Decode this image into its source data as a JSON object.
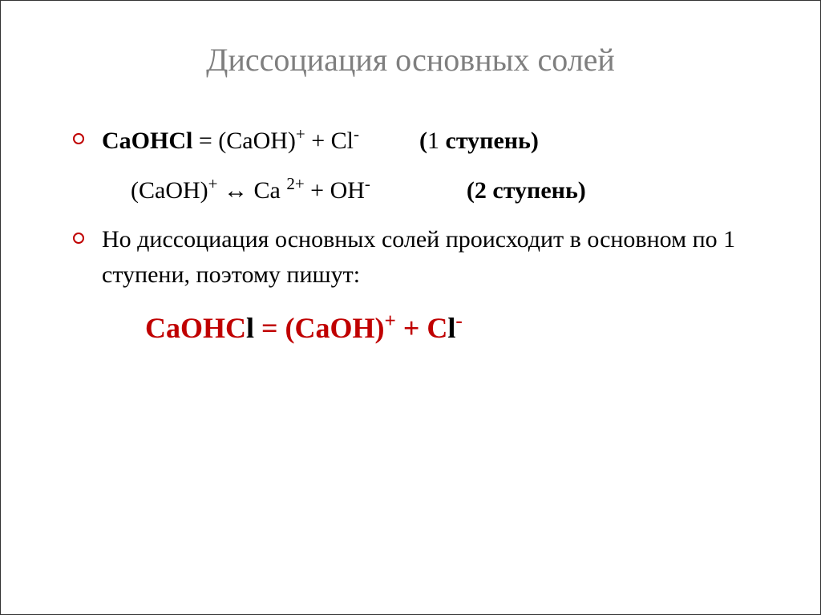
{
  "slide": {
    "title": "Диссоциация основных солей",
    "title_color": "#7f7f7f",
    "title_fontsize": 40,
    "background_color": "#ffffff",
    "bullet_color": "#c00000",
    "text_color": "#000000",
    "highlight_color": "#c00000",
    "body_fontsize": 30,
    "highlight_fontsize": 36,
    "line1": {
      "formula_left": "CaOHCl",
      "equals": " = ",
      "product1": "(CaOH)",
      "product1_sup": "+",
      "plus": " + Cl",
      "chloride_sup": "-",
      "label": "(1 ступень)"
    },
    "line2": {
      "formula_left": "(CaOH)",
      "sup1": "+",
      "arrow": " ↔ Ca ",
      "sup2": "2+",
      "plus_oh": " + OH",
      "sup3": "-",
      "label": "(2 ступень)"
    },
    "paragraph": "Но диссоциация основных солей происходит в основном по 1 ступени, поэтому пишут:",
    "highlight_equation": {
      "left": "CaOHC",
      "left_end": "l",
      "equals": " = (CaOH)",
      "sup1": "+",
      "plus": " + C",
      "plus_end": "l",
      "sup2": "-"
    }
  }
}
